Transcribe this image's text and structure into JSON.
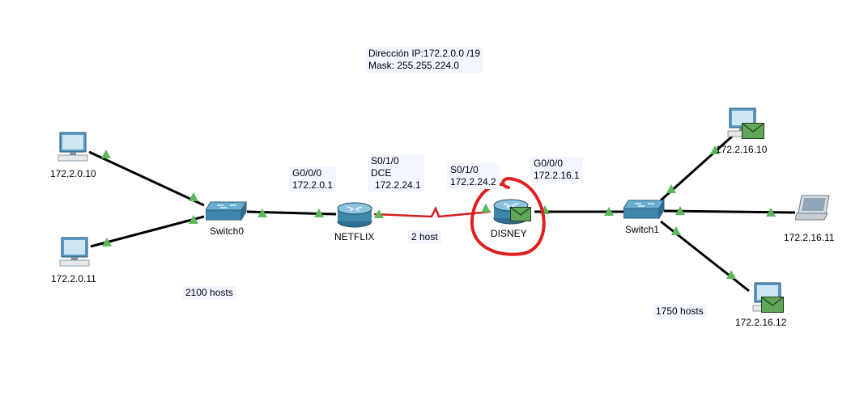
{
  "network": {
    "note_ip": "Dirección IP:172.2.0.0 /19",
    "note_mask": "Mask: 255.255.224.0"
  },
  "devices": {
    "pc0": {
      "label": "172.2.0.10"
    },
    "pc1": {
      "label": "172.2.0.11"
    },
    "switch0": {
      "label": "Switch0"
    },
    "netflix": {
      "label": "NETFLIX"
    },
    "disney": {
      "label": "DISNEY"
    },
    "switch1": {
      "label": "Switch1"
    },
    "pc2": {
      "label": "172.2.16.10"
    },
    "laptop": {
      "label": "172.2.16.11"
    },
    "pc3": {
      "label": "172.2.16.12"
    }
  },
  "interfaces": {
    "netflix_g": {
      "name": "G0/0/0",
      "ip": "172.2.0.1"
    },
    "netflix_s": {
      "name": "S0/1/0",
      "role": "DCE",
      "ip": "172.2.24.1"
    },
    "disney_s": {
      "name": "S0/1/0",
      "ip": "172.2.24.2"
    },
    "disney_g": {
      "name": "G0/0/0",
      "ip": "172.2.16.1"
    }
  },
  "notes": {
    "lan_left": "2100 hosts",
    "wan": "2 host",
    "lan_right": "1750 hosts"
  },
  "colors": {
    "link": "#000000",
    "serial_link": "#d42020",
    "link_light": "#5cb85c",
    "annotation": "#e02020",
    "note_bg": "#f4f6ff",
    "device_blue": "#4a8ab0"
  },
  "icons": {
    "pdu": "envelope-icon"
  }
}
